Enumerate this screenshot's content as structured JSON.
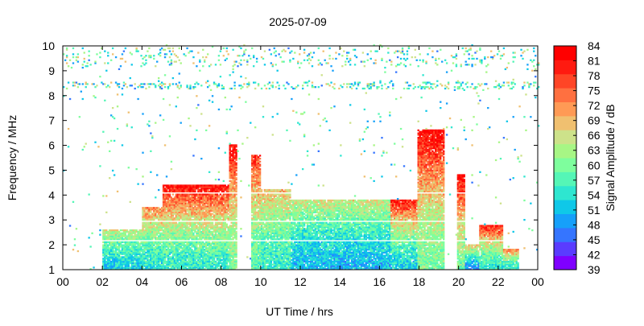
{
  "chart_data": {
    "type": "heatmap",
    "title": "2025-07-09",
    "xlabel": "UT Time / hrs",
    "ylabel": "Frequency / MHz",
    "colorbar_label": "Signal Amplitude / dB",
    "xlim": [
      0,
      24
    ],
    "ylim": [
      1,
      10
    ],
    "x_ticks": [
      "00",
      "02",
      "04",
      "06",
      "08",
      "10",
      "12",
      "14",
      "16",
      "18",
      "20",
      "22",
      "00"
    ],
    "y_ticks": [
      "1",
      "2",
      "3",
      "4",
      "5",
      "6",
      "7",
      "8",
      "9",
      "10"
    ],
    "colorbar_ticks": [
      "39",
      "42",
      "45",
      "48",
      "51",
      "54",
      "57",
      "60",
      "63",
      "66",
      "69",
      "72",
      "75",
      "78",
      "81",
      "84"
    ],
    "colorbar_range": [
      39,
      84
    ],
    "colorbar_colors": [
      "#7f00ff",
      "#5a3cff",
      "#3575ff",
      "#16a0fa",
      "#0fc8e8",
      "#2ee6d0",
      "#55f6b6",
      "#7efe9d",
      "#a7f685",
      "#cde28a",
      "#f0c070",
      "#ff9a55",
      "#ff7040",
      "#ff4526",
      "#ff1a10",
      "#ff0000"
    ],
    "regions": [
      {
        "t_start": 2.0,
        "t_end": 4.0,
        "f_max": 2.6,
        "level_low": 52,
        "level_high": 66
      },
      {
        "t_start": 4.0,
        "t_end": 5.0,
        "f_max": 3.5,
        "level_low": 54,
        "level_high": 74
      },
      {
        "t_start": 5.0,
        "t_end": 8.5,
        "f_max": 4.4,
        "level_low": 55,
        "level_high": 83
      },
      {
        "t_start": 8.4,
        "t_end": 8.8,
        "f_max": 6.0,
        "level_low": 60,
        "level_high": 84
      },
      {
        "t_start": 9.5,
        "t_end": 10.0,
        "f_max": 5.6,
        "level_low": 58,
        "level_high": 80
      },
      {
        "t_start": 10.0,
        "t_end": 11.5,
        "f_max": 4.2,
        "level_low": 55,
        "level_high": 70
      },
      {
        "t_start": 11.5,
        "t_end": 16.5,
        "f_max": 3.8,
        "level_low": 50,
        "level_high": 66
      },
      {
        "t_start": 16.5,
        "t_end": 19.0,
        "f_max": 3.8,
        "level_low": 52,
        "level_high": 82
      },
      {
        "t_start": 17.9,
        "t_end": 19.2,
        "f_max": 6.6,
        "level_low": 60,
        "level_high": 84
      },
      {
        "t_start": 19.9,
        "t_end": 20.3,
        "f_max": 4.8,
        "level_low": 60,
        "level_high": 84
      },
      {
        "t_start": 20.3,
        "t_end": 21.0,
        "f_max": 2.0,
        "level_low": 48,
        "level_high": 70
      },
      {
        "t_start": 21.0,
        "t_end": 22.2,
        "f_max": 2.8,
        "level_low": 55,
        "level_high": 82
      },
      {
        "t_start": 22.2,
        "t_end": 23.0,
        "f_max": 1.8,
        "level_low": 55,
        "level_high": 74
      }
    ],
    "gaps_mhz": [
      2.15,
      2.9,
      4.05
    ],
    "grid": false,
    "legend": "colorbar-right"
  }
}
